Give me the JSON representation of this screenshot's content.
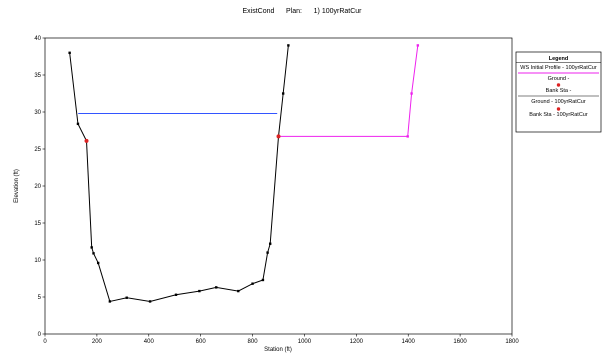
{
  "chart_data": {
    "type": "line",
    "title": "ExistCond      Plan:      1) 100yrRatCur",
    "xlabel": "Station (ft)",
    "ylabel": "Elevation (ft)",
    "xlim": [
      0,
      1800
    ],
    "ylim": [
      0,
      40
    ],
    "x_ticks": [
      0,
      200,
      400,
      600,
      800,
      1000,
      1200,
      1400,
      1600,
      1800
    ],
    "y_ticks": [
      0,
      5,
      10,
      15,
      20,
      25,
      30,
      35,
      40
    ],
    "grid": false,
    "legend_position": "top-right",
    "legend_title": "Legend",
    "legend_entries": [
      "WS Initial Profile - 100yrRatCur",
      "Ground -",
      "Bank Sta -",
      "Ground - 100yrRatCur",
      "Bank Sta - 100yrRatCur"
    ],
    "colors": {
      "ws": "#3355ff",
      "ground": "#000000",
      "bank": "#dd2222",
      "ground_alt": "#ee22ee",
      "bank_alt": "#dd2222"
    },
    "series": [
      {
        "name": "WS Initial Profile - 100yrRatCur",
        "points": [
          [
            128,
            29.8
          ],
          [
            895,
            29.8
          ]
        ]
      },
      {
        "name": "Ground -",
        "points": [
          [
            95,
            38
          ],
          [
            127,
            28.4
          ],
          [
            160,
            26.1
          ],
          [
            180,
            11.7
          ],
          [
            187,
            10.9
          ],
          [
            205,
            9.6
          ],
          [
            250,
            4.4
          ],
          [
            315,
            4.9
          ],
          [
            405,
            4.4
          ],
          [
            505,
            5.3
          ],
          [
            595,
            5.8
          ],
          [
            660,
            6.3
          ],
          [
            745,
            5.8
          ],
          [
            800,
            6.8
          ],
          [
            840,
            7.3
          ],
          [
            858,
            11
          ],
          [
            868,
            12.2
          ],
          [
            900,
            26.7
          ],
          [
            918,
            32.5
          ],
          [
            938,
            39
          ]
        ]
      },
      {
        "name": "Bank Sta -",
        "points": [
          [
            160,
            26.1
          ],
          [
            900,
            26.7
          ]
        ]
      },
      {
        "name": "Ground - 100yrRatCur",
        "points": [
          [
            900,
            26.7
          ],
          [
            1398,
            26.7
          ],
          [
            1413,
            32.5
          ],
          [
            1437,
            39
          ]
        ]
      }
    ]
  }
}
